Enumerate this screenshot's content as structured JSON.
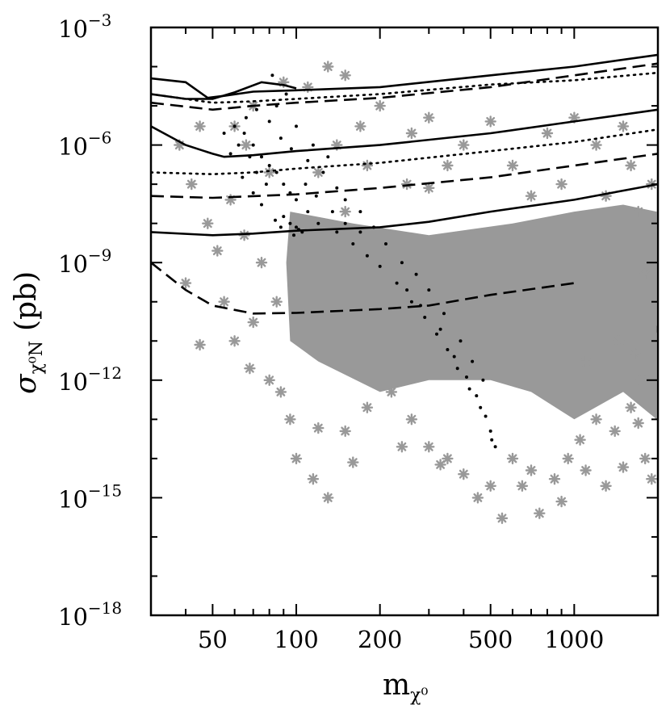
{
  "chart_data": {
    "type": "scatter",
    "title": "",
    "xlabel": {
      "base": "m",
      "sub": "χ⁰"
    },
    "ylabel": {
      "base": "σ",
      "sub": "χ⁰N",
      "unit": "(pb)"
    },
    "x_scale": "log",
    "y_scale": "log",
    "xlim": [
      30,
      2000
    ],
    "ylim": [
      1e-18,
      0.001
    ],
    "x_ticks": [
      {
        "value": 50,
        "label": "50"
      },
      {
        "value": 100,
        "label": "100"
      },
      {
        "value": 200,
        "label": "200"
      },
      {
        "value": 500,
        "label": "500"
      },
      {
        "value": 1000,
        "label": "1000"
      }
    ],
    "y_ticks": [
      {
        "value": 0.001,
        "base": "10",
        "exp": "−3"
      },
      {
        "value": 1e-06,
        "base": "10",
        "exp": "−6"
      },
      {
        "value": 1e-09,
        "base": "10",
        "exp": "−9"
      },
      {
        "value": 1e-12,
        "base": "10",
        "exp": "−12"
      },
      {
        "value": 1e-15,
        "base": "10",
        "exp": "−15"
      },
      {
        "value": 1e-18,
        "base": "10",
        "exp": "−18"
      }
    ],
    "grid": false,
    "legend": "none",
    "series": [
      {
        "kind": "scan-points-grey",
        "marker": "asterisk",
        "color": "#999999",
        "points": [
          [
            130,
            0.0001
          ],
          [
            110,
            3e-05
          ],
          [
            150,
            6e-05
          ],
          [
            90,
            4e-05
          ],
          [
            200,
            1e-05
          ],
          [
            300,
            5e-06
          ],
          [
            70,
            1e-05
          ],
          [
            60,
            3e-06
          ],
          [
            45,
            3e-06
          ],
          [
            38,
            1e-06
          ],
          [
            42,
            1e-07
          ],
          [
            48,
            1e-08
          ],
          [
            52,
            2e-09
          ],
          [
            40,
            3e-10
          ],
          [
            55,
            1e-10
          ],
          [
            60,
            1e-11
          ],
          [
            45,
            8e-12
          ],
          [
            70,
            3e-11
          ],
          [
            80,
            1e-12
          ],
          [
            95,
            1e-13
          ],
          [
            100,
            1e-14
          ],
          [
            115,
            3e-15
          ],
          [
            130,
            1e-15
          ],
          [
            150,
            5e-14
          ],
          [
            180,
            2e-13
          ],
          [
            220,
            5e-13
          ],
          [
            260,
            1e-13
          ],
          [
            300,
            2e-14
          ],
          [
            350,
            1e-14
          ],
          [
            450,
            1e-15
          ],
          [
            500,
            2e-15
          ],
          [
            550,
            3e-16
          ],
          [
            650,
            2e-15
          ],
          [
            700,
            5e-15
          ],
          [
            750,
            4e-16
          ],
          [
            850,
            3e-15
          ],
          [
            950,
            1e-14
          ],
          [
            1050,
            3e-14
          ],
          [
            1200,
            1e-13
          ],
          [
            1400,
            5e-14
          ],
          [
            1600,
            2e-13
          ],
          [
            1800,
            1e-14
          ],
          [
            1900,
            3e-15
          ],
          [
            1700,
            8e-14
          ],
          [
            1500,
            6e-15
          ],
          [
            400,
            4e-15
          ],
          [
            240,
            2e-14
          ],
          [
            330,
            7e-15
          ],
          [
            600,
            1e-14
          ],
          [
            900,
            8e-16
          ],
          [
            1100,
            5e-15
          ],
          [
            1300,
            2e-15
          ],
          [
            160,
            8e-15
          ],
          [
            120,
            6e-14
          ],
          [
            88,
            5e-13
          ],
          [
            68,
            2e-12
          ],
          [
            260,
            2e-06
          ],
          [
            400,
            1e-06
          ],
          [
            600,
            3e-07
          ],
          [
            900,
            1e-07
          ],
          [
            1300,
            5e-08
          ],
          [
            1700,
            2e-08
          ],
          [
            1900,
            1e-07
          ],
          [
            1600,
            3e-07
          ],
          [
            1200,
            1e-06
          ],
          [
            800,
            2e-06
          ],
          [
            500,
            4e-06
          ],
          [
            1000,
            5e-06
          ],
          [
            1500,
            3e-06
          ],
          [
            350,
            3e-07
          ],
          [
            700,
            5e-08
          ],
          [
            250,
            1e-07
          ],
          [
            180,
            3e-07
          ],
          [
            140,
            1e-06
          ],
          [
            170,
            3e-06
          ],
          [
            75,
            1e-09
          ],
          [
            85,
            1e-10
          ],
          [
            65,
            5e-09
          ],
          [
            58,
            4e-08
          ],
          [
            80,
            2e-07
          ],
          [
            66,
            1e-06
          ],
          [
            120,
            2e-07
          ],
          [
            150,
            2e-08
          ],
          [
            1800,
            5e-10
          ],
          [
            1950,
            2e-11
          ],
          [
            1750,
            1e-12
          ],
          [
            1650,
            5e-12
          ],
          [
            1450,
            1e-11
          ],
          [
            1100,
            3e-12
          ],
          [
            300,
            8e-08
          ]
        ],
        "filled_region": [
          [
            95,
            2e-08
          ],
          [
            160,
            1e-08
          ],
          [
            300,
            5e-09
          ],
          [
            600,
            1e-08
          ],
          [
            1000,
            2e-08
          ],
          [
            1500,
            3e-08
          ],
          [
            1980,
            2e-08
          ],
          [
            1980,
            1e-13
          ],
          [
            1500,
            5e-13
          ],
          [
            1000,
            1e-13
          ],
          [
            700,
            5e-13
          ],
          [
            500,
            1e-12
          ],
          [
            300,
            1e-12
          ],
          [
            200,
            5e-13
          ],
          [
            120,
            3e-12
          ],
          [
            95,
            1e-11
          ],
          [
            92,
            1e-09
          ]
        ]
      },
      {
        "kind": "scan-points-black",
        "marker": "dot",
        "color": "#000000",
        "points": [
          [
            60,
            3e-06
          ],
          [
            65,
            2e-06
          ],
          [
            70,
            1e-06
          ],
          [
            75,
            5e-07
          ],
          [
            80,
            3e-07
          ],
          [
            85,
            2e-07
          ],
          [
            90,
            1e-07
          ],
          [
            95,
            6e-08
          ],
          [
            100,
            4e-08
          ],
          [
            110,
            2e-08
          ],
          [
            120,
            1e-08
          ],
          [
            140,
            6e-09
          ],
          [
            160,
            3e-09
          ],
          [
            180,
            1.5e-09
          ],
          [
            200,
            8e-10
          ],
          [
            230,
            3e-10
          ],
          [
            260,
            1e-10
          ],
          [
            290,
            4e-11
          ],
          [
            320,
            1.5e-11
          ],
          [
            350,
            6e-12
          ],
          [
            380,
            2e-12
          ],
          [
            420,
            6e-13
          ],
          [
            460,
            2e-13
          ],
          [
            500,
            5e-14
          ],
          [
            520,
            2e-14
          ],
          [
            95,
            1e-08
          ],
          [
            100,
            8e-09
          ],
          [
            90,
            1.5e-08
          ],
          [
            105,
            6e-09
          ],
          [
            62,
            1e-06
          ],
          [
            68,
            5e-07
          ],
          [
            72,
            2e-07
          ],
          [
            78,
            1e-07
          ],
          [
            66,
            5e-06
          ],
          [
            72,
            8e-06
          ],
          [
            80,
            4e-06
          ],
          [
            88,
            1.5e-06
          ],
          [
            96,
            8e-07
          ],
          [
            110,
            4e-07
          ],
          [
            125,
            2e-07
          ],
          [
            140,
            8e-08
          ],
          [
            150,
            4e-08
          ],
          [
            170,
            2e-08
          ],
          [
            190,
            8e-09
          ],
          [
            210,
            3e-09
          ],
          [
            240,
            1e-09
          ],
          [
            270,
            5e-10
          ],
          [
            300,
            2e-10
          ],
          [
            340,
            5e-11
          ],
          [
            390,
            1e-11
          ],
          [
            430,
            3e-12
          ],
          [
            470,
            1e-12
          ],
          [
            85,
            1e-05
          ],
          [
            82,
            6e-05
          ],
          [
            92,
            2e-05
          ],
          [
            100,
            3e-06
          ],
          [
            115,
            1e-06
          ],
          [
            130,
            5e-07
          ],
          [
            55,
            2e-06
          ],
          [
            58,
            6e-07
          ],
          [
            64,
            1.5e-07
          ],
          [
            70,
            6e-08
          ],
          [
            75,
            3e-08
          ],
          [
            84,
            1.2e-08
          ],
          [
            88,
            8e-09
          ],
          [
            98,
            5e-09
          ],
          [
            102,
            7e-09
          ],
          [
            170,
            6e-09
          ],
          [
            150,
            1e-08
          ],
          [
            135,
            2e-08
          ],
          [
            118,
            5e-08
          ],
          [
            108,
            1e-07
          ],
          [
            250,
            2e-10
          ],
          [
            280,
            8e-11
          ],
          [
            330,
            2e-11
          ],
          [
            370,
            4e-12
          ],
          [
            410,
            1.2e-12
          ],
          [
            445,
            4e-13
          ],
          [
            480,
            1.2e-13
          ],
          [
            505,
            3e-14
          ]
        ]
      }
    ],
    "curves": [
      {
        "style": "solid",
        "points": [
          [
            30,
            5e-05
          ],
          [
            40,
            4e-05
          ],
          [
            48,
            1.6e-05
          ],
          [
            55,
            1.8e-05
          ],
          [
            70,
            2.3e-05
          ],
          [
            100,
            2.5e-05
          ],
          [
            200,
            3e-05
          ],
          [
            500,
            6e-05
          ],
          [
            1000,
            0.0001
          ],
          [
            2000,
            0.0002
          ]
        ]
      },
      {
        "style": "solid",
        "points": [
          [
            30,
            2e-05
          ],
          [
            40,
            1.5e-05
          ],
          [
            50,
            1.5e-05
          ],
          [
            60,
            2.2e-05
          ],
          [
            75,
            4e-05
          ],
          [
            90,
            3.4e-05
          ],
          [
            100,
            2.8e-05
          ]
        ]
      },
      {
        "style": "solid",
        "points": [
          [
            30,
            3e-06
          ],
          [
            40,
            1e-06
          ],
          [
            50,
            6e-07
          ],
          [
            55,
            5e-07
          ],
          [
            70,
            5.5e-07
          ],
          [
            100,
            7e-07
          ],
          [
            200,
            1e-06
          ],
          [
            500,
            2e-06
          ],
          [
            1000,
            4e-06
          ],
          [
            2000,
            8e-06
          ]
        ]
      },
      {
        "style": "solid",
        "points": [
          [
            30,
            6e-09
          ],
          [
            50,
            5e-09
          ],
          [
            70,
            5.5e-09
          ],
          [
            100,
            6.5e-09
          ],
          [
            200,
            8e-09
          ],
          [
            300,
            1.1e-08
          ],
          [
            500,
            2e-08
          ],
          [
            1000,
            4e-08
          ],
          [
            2000,
            1e-07
          ]
        ]
      },
      {
        "style": "dashed",
        "points": [
          [
            30,
            1.2e-05
          ],
          [
            50,
            8e-06
          ],
          [
            70,
            1e-05
          ],
          [
            100,
            1.2e-05
          ],
          [
            200,
            1.6e-05
          ],
          [
            500,
            3e-05
          ],
          [
            1000,
            6e-05
          ],
          [
            2000,
            0.00012
          ]
        ]
      },
      {
        "style": "dashed",
        "points": [
          [
            30,
            5e-08
          ],
          [
            50,
            4.5e-08
          ],
          [
            100,
            5.5e-08
          ],
          [
            200,
            8e-08
          ],
          [
            500,
            1.5e-07
          ],
          [
            1000,
            3e-07
          ],
          [
            2000,
            6e-07
          ]
        ]
      },
      {
        "style": "dashed",
        "points": [
          [
            30,
            1e-09
          ],
          [
            40,
            2e-10
          ],
          [
            50,
            8e-11
          ],
          [
            70,
            5e-11
          ],
          [
            100,
            5.2e-11
          ],
          [
            200,
            6.5e-11
          ],
          [
            300,
            8e-11
          ],
          [
            500,
            1.5e-10
          ],
          [
            1000,
            3e-10
          ]
        ]
      },
      {
        "style": "dotted",
        "points": [
          [
            30,
            2e-05
          ],
          [
            50,
            1.2e-05
          ],
          [
            70,
            1.3e-05
          ],
          [
            100,
            1.5e-05
          ],
          [
            200,
            2e-05
          ],
          [
            500,
            3.5e-05
          ],
          [
            1000,
            4.5e-05
          ],
          [
            2000,
            7e-05
          ]
        ]
      },
      {
        "style": "dotted",
        "points": [
          [
            30,
            2e-07
          ],
          [
            50,
            1.8e-07
          ],
          [
            70,
            2e-07
          ],
          [
            100,
            2.5e-07
          ],
          [
            200,
            3.5e-07
          ],
          [
            500,
            7e-07
          ],
          [
            1000,
            1.2e-06
          ],
          [
            2000,
            2.5e-06
          ]
        ]
      }
    ]
  }
}
